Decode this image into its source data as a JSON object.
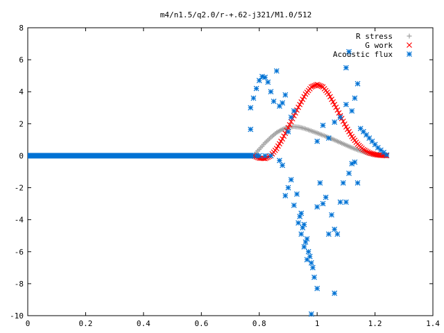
{
  "chart_data": {
    "type": "scatter",
    "title": "m4/n1.5/q2.0/r-+.62-j321/M1.0/512",
    "xlabel": "",
    "ylabel": "",
    "xlim": [
      0,
      1.4
    ],
    "ylim": [
      -10,
      8
    ],
    "x_ticks": [
      "0",
      "0.2",
      "0.4",
      "0.6",
      "0.8",
      "1",
      "1.2",
      "1.4"
    ],
    "y_ticks": [
      "8",
      "6",
      "4",
      "2",
      "0",
      "-2",
      "-4",
      "-6",
      "-8",
      "-10"
    ],
    "grid": false,
    "legend_position": "top-right",
    "series": [
      {
        "name": "R stress",
        "marker": "plus",
        "color": "#a0a0a0",
        "points": [
          [
            0.78,
            0
          ],
          [
            0.8,
            0.4
          ],
          [
            0.82,
            0.8
          ],
          [
            0.84,
            1.15
          ],
          [
            0.86,
            1.45
          ],
          [
            0.88,
            1.65
          ],
          [
            0.9,
            1.78
          ],
          [
            0.92,
            1.82
          ],
          [
            0.94,
            1.78
          ],
          [
            0.96,
            1.68
          ],
          [
            0.98,
            1.55
          ],
          [
            1.0,
            1.42
          ],
          [
            1.02,
            1.28
          ],
          [
            1.04,
            1.14
          ],
          [
            1.06,
            0.98
          ],
          [
            1.08,
            0.82
          ],
          [
            1.1,
            0.66
          ],
          [
            1.12,
            0.5
          ],
          [
            1.14,
            0.36
          ],
          [
            1.16,
            0.24
          ],
          [
            1.18,
            0.14
          ],
          [
            1.2,
            0.07
          ],
          [
            1.22,
            0.03
          ],
          [
            1.24,
            0.01
          ]
        ]
      },
      {
        "name": "G work",
        "marker": "cross",
        "color": "#ff0000",
        "points": [
          [
            0.78,
            0
          ],
          [
            0.8,
            -0.15
          ],
          [
            0.82,
            -0.18
          ],
          [
            0.84,
            0
          ],
          [
            0.86,
            0.45
          ],
          [
            0.88,
            1.05
          ],
          [
            0.9,
            1.75
          ],
          [
            0.92,
            2.5
          ],
          [
            0.94,
            3.2
          ],
          [
            0.96,
            3.85
          ],
          [
            0.98,
            4.3
          ],
          [
            1.0,
            4.45
          ],
          [
            1.02,
            4.3
          ],
          [
            1.04,
            3.85
          ],
          [
            1.06,
            3.2
          ],
          [
            1.08,
            2.5
          ],
          [
            1.1,
            1.8
          ],
          [
            1.12,
            1.2
          ],
          [
            1.14,
            0.72
          ],
          [
            1.16,
            0.38
          ],
          [
            1.18,
            0.18
          ],
          [
            1.2,
            0.07
          ],
          [
            1.22,
            0.02
          ],
          [
            1.24,
            0.0
          ]
        ]
      },
      {
        "name": "Acoustic flux",
        "marker": "asterisk",
        "color": "#0072d4",
        "baseline_x": [
          0,
          0.78
        ],
        "points": [
          [
            0.77,
            3.0
          ],
          [
            0.78,
            3.6
          ],
          [
            0.79,
            4.2
          ],
          [
            0.8,
            4.7
          ],
          [
            0.81,
            4.95
          ],
          [
            0.82,
            4.9
          ],
          [
            0.83,
            4.6
          ],
          [
            0.84,
            4.0
          ],
          [
            0.85,
            3.4
          ],
          [
            0.77,
            1.65
          ],
          [
            0.86,
            5.3
          ],
          [
            0.87,
            3.1
          ],
          [
            0.88,
            3.3
          ],
          [
            0.89,
            3.8
          ],
          [
            0.9,
            1.5
          ],
          [
            0.91,
            2.4
          ],
          [
            0.92,
            2.8
          ],
          [
            0.87,
            -0.3
          ],
          [
            0.88,
            -0.6
          ],
          [
            0.89,
            -2.5
          ],
          [
            0.9,
            -2.0
          ],
          [
            0.91,
            -1.5
          ],
          [
            0.92,
            -3.1
          ],
          [
            0.93,
            -2.4
          ],
          [
            0.94,
            -3.8
          ],
          [
            0.95,
            -4.5
          ],
          [
            0.96,
            -5.4
          ],
          [
            0.97,
            -6.0
          ],
          [
            0.98,
            -6.7
          ],
          [
            0.99,
            -7.6
          ],
          [
            1.0,
            -8.3
          ],
          [
            0.985,
            -7.0
          ],
          [
            0.975,
            -6.3
          ],
          [
            0.965,
            -5.2
          ],
          [
            0.955,
            -4.3
          ],
          [
            0.945,
            -3.6
          ],
          [
            0.935,
            -4.2
          ],
          [
            0.945,
            -4.9
          ],
          [
            0.955,
            -5.7
          ],
          [
            0.965,
            -6.5
          ],
          [
            1.0,
            -3.2
          ],
          [
            1.01,
            -1.7
          ],
          [
            1.02,
            -3.0
          ],
          [
            1.03,
            -2.6
          ],
          [
            1.04,
            -4.9
          ],
          [
            1.05,
            -3.7
          ],
          [
            1.06,
            -4.6
          ],
          [
            1.07,
            -4.9
          ],
          [
            1.08,
            -2.9
          ],
          [
            1.09,
            -1.7
          ],
          [
            1.1,
            -2.9
          ],
          [
            1.11,
            -1.1
          ],
          [
            1.12,
            -0.5
          ],
          [
            1.13,
            -0.4
          ],
          [
            1.14,
            -1.7
          ],
          [
            0.98,
            -9.9
          ],
          [
            1.06,
            -8.6
          ],
          [
            1.0,
            0.9
          ],
          [
            1.02,
            1.9
          ],
          [
            1.04,
            1.1
          ],
          [
            1.06,
            2.1
          ],
          [
            1.08,
            2.4
          ],
          [
            1.1,
            3.2
          ],
          [
            1.12,
            2.8
          ],
          [
            1.13,
            3.6
          ],
          [
            1.1,
            5.5
          ],
          [
            1.11,
            6.5
          ],
          [
            1.14,
            4.5
          ],
          [
            1.15,
            1.7
          ],
          [
            1.16,
            1.5
          ],
          [
            1.17,
            1.3
          ],
          [
            1.18,
            1.1
          ],
          [
            1.19,
            0.9
          ],
          [
            1.2,
            0.7
          ],
          [
            1.21,
            0.5
          ],
          [
            1.22,
            0.35
          ],
          [
            1.23,
            0.2
          ],
          [
            1.24,
            0.05
          ],
          [
            0.79,
            0
          ],
          [
            0.8,
            0
          ],
          [
            0.82,
            0
          ],
          [
            0.84,
            0
          ]
        ]
      }
    ]
  }
}
